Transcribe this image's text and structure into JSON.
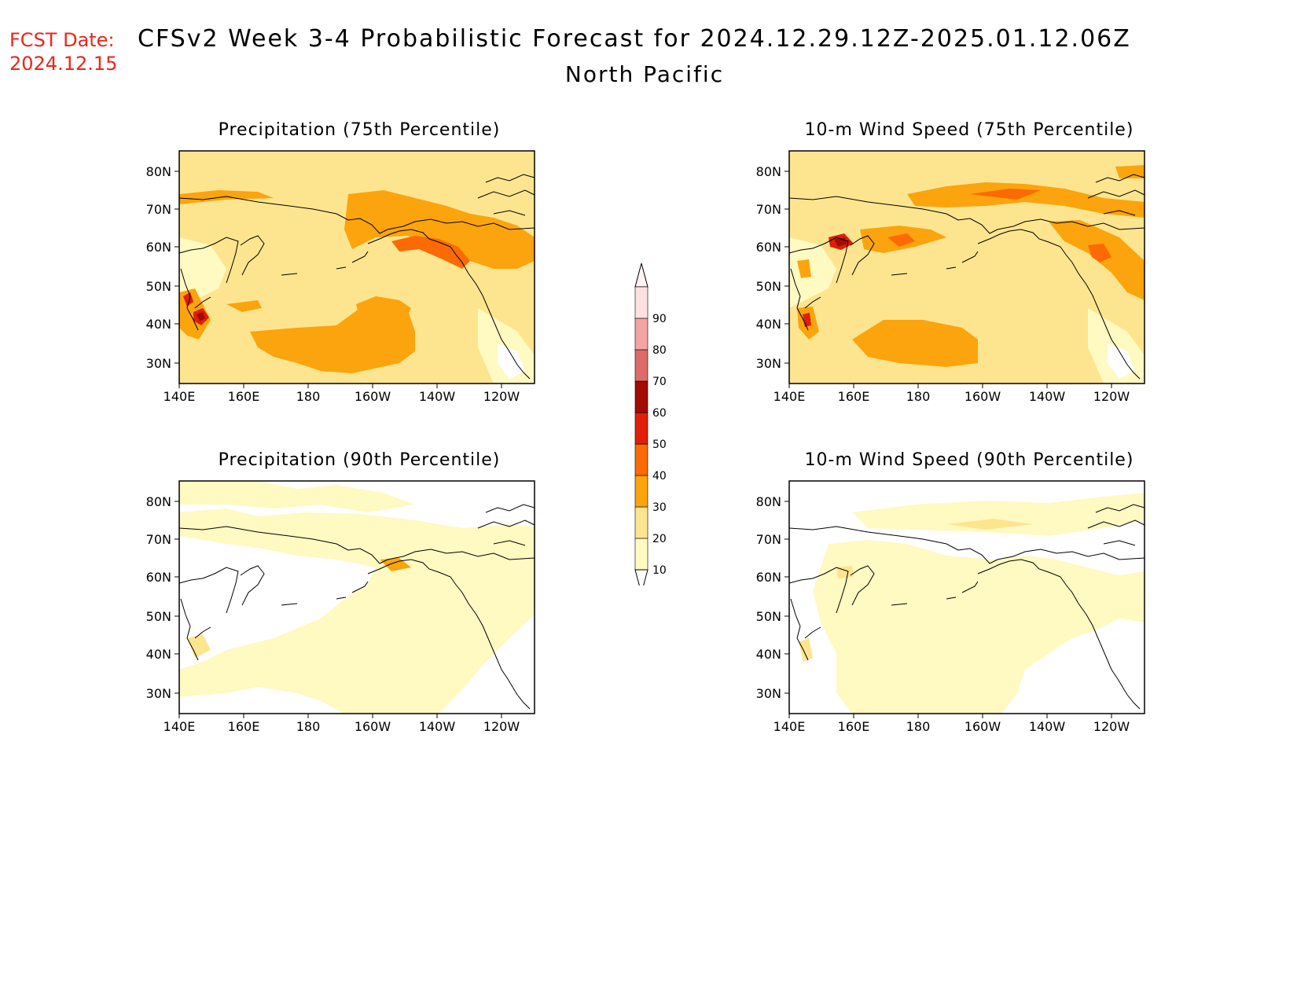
{
  "header": {
    "fcst_label": "FCST Date:",
    "fcst_date": "2024.12.15",
    "title": "CFSv2 Week 3-4 Probabilistic Forecast for 2024.12.29.12Z-2025.01.12.06Z",
    "region": "North Pacific"
  },
  "map_axes": {
    "lat_labels": [
      "80N",
      "70N",
      "60N",
      "50N",
      "40N",
      "30N"
    ],
    "lon_labels": [
      "140E",
      "160E",
      "180",
      "160W",
      "140W",
      "120W"
    ]
  },
  "panels": [
    {
      "id": "precip-75",
      "title": "Precipitation (75th Percentile)"
    },
    {
      "id": "wind-75",
      "title": "10-m Wind Speed (75th Percentile)"
    },
    {
      "id": "precip-90",
      "title": "Precipitation (90th Percentile)"
    },
    {
      "id": "wind-90",
      "title": "10-m Wind Speed (90th Percentile)"
    }
  ],
  "colorbar": {
    "levels": [
      "10",
      "20",
      "30",
      "40",
      "50",
      "60",
      "70",
      "80",
      "90"
    ],
    "colors": [
      "#fff9c2",
      "#fde58f",
      "#fba40d",
      "#fb6a05",
      "#e01e0a",
      "#a30c03",
      "#dd6b6b",
      "#f4a4a4",
      "#fde0e0"
    ]
  },
  "palette": {
    "ocean_base_75p": "#fde58f",
    "ocean_base_90p": "#fff9c2",
    "orange": "#fba40d",
    "dark_orange": "#fb6a05",
    "red": "#e01e0a",
    "dark_red": "#a30c03",
    "title_red": "#e8261c"
  }
}
